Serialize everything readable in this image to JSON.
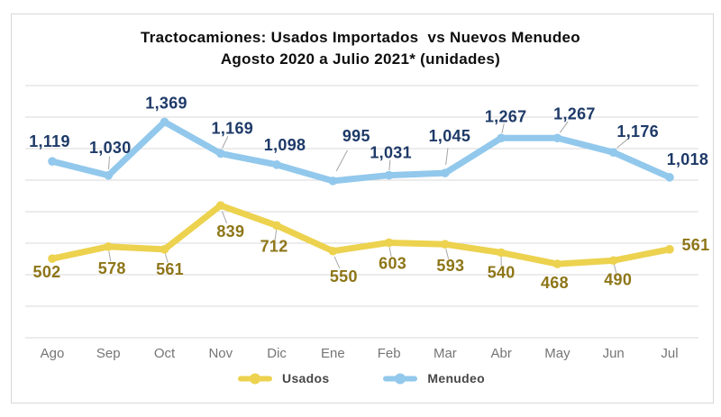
{
  "title": {
    "line1": "Tractocamiones: Usados Importados  vs Nuevos Menudeo",
    "line2": "Agosto 2020 a Julio 2021* (unidades)"
  },
  "chart_data": {
    "type": "line",
    "categories": [
      "Ago",
      "Sep",
      "Oct",
      "Nov",
      "Dic",
      "Ene",
      "Feb",
      "Mar",
      "Abr",
      "May",
      "Jun",
      "Jul"
    ],
    "series": [
      {
        "name": "Usados",
        "color": "#ECD24E",
        "label_color": "#8E7618",
        "values": [
          502,
          578,
          561,
          839,
          712,
          550,
          603,
          593,
          540,
          468,
          490,
          561
        ],
        "labels": [
          "502",
          "578",
          "561",
          "839",
          "712",
          "550",
          "603",
          "593",
          "540",
          "468",
          "490",
          "561"
        ]
      },
      {
        "name": "Menudeo",
        "color": "#92C8EC",
        "label_color": "#1E3A68",
        "values": [
          1119,
          1030,
          1369,
          1169,
          1098,
          995,
          1031,
          1045,
          1267,
          1267,
          1176,
          1018
        ],
        "labels": [
          "1,119",
          "1,030",
          "1,369",
          "1,169",
          "1,098",
          "995",
          "1,031",
          "1,045",
          "1,267",
          "1,267",
          "1,176",
          "1,018"
        ]
      }
    ],
    "ylim": [
      0,
      1600
    ],
    "gridline_step": 200,
    "grid": true,
    "legend_position": "bottom",
    "xlabel": "",
    "ylabel": ""
  },
  "colors": {
    "gridline": "#D9D9D9",
    "axis_label": "#757575",
    "leader": "#A6A6A6",
    "legend_text": "#474747",
    "border": "#D8D8D8",
    "title": "#0D0D0D"
  }
}
